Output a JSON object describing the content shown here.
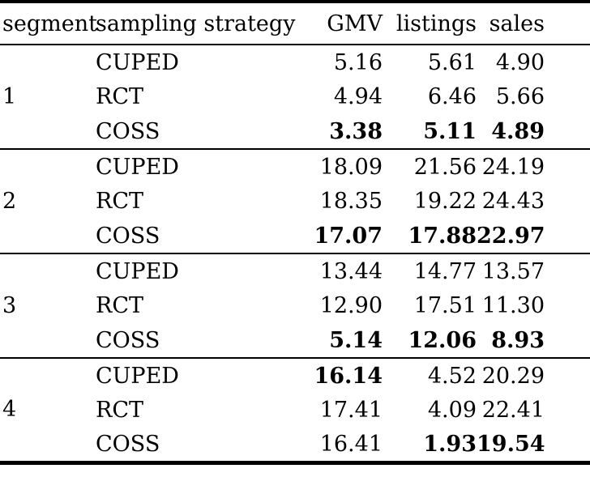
{
  "page": {
    "background_color": "#ffffff",
    "text_color": "#000000"
  },
  "table": {
    "columns": [
      {
        "label": "segment",
        "align": "left"
      },
      {
        "label": "sampling strategy",
        "align": "left"
      },
      {
        "label": "GMV",
        "align": "right"
      },
      {
        "label": "listings",
        "align": "right"
      },
      {
        "label": "sales",
        "align": "right"
      }
    ],
    "groups": [
      {
        "segment": "1",
        "rows": [
          {
            "strategy": "CUPED",
            "values": [
              {
                "text": "5.16",
                "bold": false
              },
              {
                "text": "5.61",
                "bold": false
              },
              {
                "text": "4.90",
                "bold": false
              }
            ]
          },
          {
            "strategy": "RCT",
            "values": [
              {
                "text": "4.94",
                "bold": false
              },
              {
                "text": "6.46",
                "bold": false
              },
              {
                "text": "5.66",
                "bold": false
              }
            ]
          },
          {
            "strategy": "COSS",
            "values": [
              {
                "text": "3.38",
                "bold": true
              },
              {
                "text": "5.11",
                "bold": true
              },
              {
                "text": "4.89",
                "bold": true
              }
            ]
          }
        ]
      },
      {
        "segment": "2",
        "rows": [
          {
            "strategy": "CUPED",
            "values": [
              {
                "text": "18.09",
                "bold": false
              },
              {
                "text": "21.56",
                "bold": false
              },
              {
                "text": "24.19",
                "bold": false
              }
            ]
          },
          {
            "strategy": "RCT",
            "values": [
              {
                "text": "18.35",
                "bold": false
              },
              {
                "text": "19.22",
                "bold": false
              },
              {
                "text": "24.43",
                "bold": false
              }
            ]
          },
          {
            "strategy": "COSS",
            "values": [
              {
                "text": "17.07",
                "bold": true
              },
              {
                "text": "17.88",
                "bold": true
              },
              {
                "text": "22.97",
                "bold": true
              }
            ]
          }
        ]
      },
      {
        "segment": "3",
        "rows": [
          {
            "strategy": "CUPED",
            "values": [
              {
                "text": "13.44",
                "bold": false
              },
              {
                "text": "14.77",
                "bold": false
              },
              {
                "text": "13.57",
                "bold": false
              }
            ]
          },
          {
            "strategy": "RCT",
            "values": [
              {
                "text": "12.90",
                "bold": false
              },
              {
                "text": "17.51",
                "bold": false
              },
              {
                "text": "11.30",
                "bold": false
              }
            ]
          },
          {
            "strategy": "COSS",
            "values": [
              {
                "text": "5.14",
                "bold": true
              },
              {
                "text": "12.06",
                "bold": true
              },
              {
                "text": "8.93",
                "bold": true
              }
            ]
          }
        ]
      },
      {
        "segment": "4",
        "rows": [
          {
            "strategy": "CUPED",
            "values": [
              {
                "text": "16.14",
                "bold": true
              },
              {
                "text": "4.52",
                "bold": false
              },
              {
                "text": "20.29",
                "bold": false
              }
            ]
          },
          {
            "strategy": "RCT",
            "values": [
              {
                "text": "17.41",
                "bold": false
              },
              {
                "text": "4.09",
                "bold": false
              },
              {
                "text": "22.41",
                "bold": false
              }
            ]
          },
          {
            "strategy": "COSS",
            "values": [
              {
                "text": "16.41",
                "bold": false
              },
              {
                "text": "1.93",
                "bold": true
              },
              {
                "text": "19.54",
                "bold": true
              }
            ]
          }
        ]
      }
    ]
  },
  "chart_data": {
    "type": "table",
    "columns": [
      "segment",
      "sampling strategy",
      "GMV",
      "listings",
      "sales"
    ],
    "rows": [
      [
        "1",
        "CUPED",
        "5.16",
        "5.61",
        "4.90"
      ],
      [
        "1",
        "RCT",
        "4.94",
        "6.46",
        "5.66"
      ],
      [
        "1",
        "COSS",
        "3.38",
        "5.11",
        "4.89"
      ],
      [
        "2",
        "CUPED",
        "18.09",
        "21.56",
        "24.19"
      ],
      [
        "2",
        "RCT",
        "18.35",
        "19.22",
        "24.43"
      ],
      [
        "2",
        "COSS",
        "17.07",
        "17.88",
        "22.97"
      ],
      [
        "3",
        "CUPED",
        "13.44",
        "14.77",
        "13.57"
      ],
      [
        "3",
        "RCT",
        "12.90",
        "17.51",
        "11.30"
      ],
      [
        "3",
        "COSS",
        "5.14",
        "12.06",
        "8.93"
      ],
      [
        "4",
        "CUPED",
        "16.14",
        "4.52",
        "20.29"
      ],
      [
        "4",
        "RCT",
        "17.41",
        "4.09",
        "22.41"
      ],
      [
        "4",
        "COSS",
        "16.41",
        "1.93",
        "19.54"
      ]
    ],
    "bold_cells": [
      [
        2,
        2
      ],
      [
        2,
        3
      ],
      [
        2,
        4
      ],
      [
        5,
        2
      ],
      [
        5,
        3
      ],
      [
        5,
        4
      ],
      [
        8,
        2
      ],
      [
        8,
        3
      ],
      [
        8,
        4
      ],
      [
        9,
        2
      ],
      [
        11,
        3
      ],
      [
        11,
        4
      ]
    ]
  }
}
